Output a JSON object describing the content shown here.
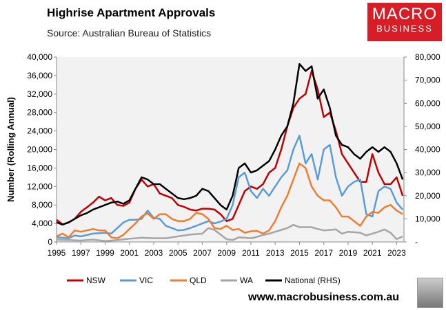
{
  "header": {
    "title": "Highrise Apartment Approvals",
    "source": "Source: Australian Bureau of Statistics"
  },
  "logo": {
    "line1": "MACRO",
    "line2": "BUSINESS",
    "color": "#d71e27"
  },
  "footer": {
    "url": "www.macrobusiness.com.au"
  },
  "chart_data": {
    "type": "line",
    "title": "Highrise Apartment Approvals",
    "ylabel": "Number (Rolling Annual)",
    "ylim": [
      0,
      40000
    ],
    "y2lim": [
      0,
      80000
    ],
    "yticks": [
      0,
      4000,
      8000,
      12000,
      16000,
      20000,
      24000,
      28000,
      32000,
      36000,
      40000
    ],
    "ytick_labels": [
      "0",
      "4,000",
      "8,000",
      "12,000",
      "16,000",
      "20,000",
      "24,000",
      "28,000",
      "32,000",
      "36,000",
      "40,000"
    ],
    "y2ticks": [
      0,
      10000,
      20000,
      30000,
      40000,
      50000,
      60000,
      70000,
      80000
    ],
    "y2tick_labels": [
      "-",
      "10,000",
      "20,000",
      "30,000",
      "40,000",
      "50,000",
      "60,000",
      "70,000",
      "80,000"
    ],
    "xlim": [
      1995,
      2023.6
    ],
    "xticks": [
      1995,
      1997,
      1999,
      2001,
      2003,
      2005,
      2007,
      2009,
      2011,
      2013,
      2015,
      2017,
      2019,
      2021,
      2023
    ],
    "xtick_labels": [
      "1995",
      "1997",
      "1999",
      "2001",
      "2003",
      "2005",
      "2007",
      "2009",
      "2011",
      "2013",
      "2015",
      "2017",
      "2019",
      "2021",
      "2023"
    ],
    "grid": false,
    "legend": "bottom",
    "x": [
      1995,
      1995.5,
      1996,
      1996.5,
      1997,
      1997.5,
      1998,
      1998.5,
      1999,
      1999.5,
      2000,
      2000.5,
      2001,
      2001.5,
      2002,
      2002.5,
      2003,
      2003.5,
      2004,
      2004.5,
      2005,
      2005.5,
      2006,
      2006.5,
      2007,
      2007.5,
      2008,
      2008.5,
      2009,
      2009.5,
      2010,
      2010.5,
      2011,
      2011.5,
      2012,
      2012.5,
      2013,
      2013.5,
      2014,
      2014.5,
      2015,
      2015.5,
      2016,
      2016.5,
      2017,
      2017.5,
      2018,
      2018.5,
      2019,
      2019.5,
      2020,
      2020.5,
      2021,
      2021.5,
      2022,
      2022.5,
      2023,
      2023.5
    ],
    "series": [
      {
        "name": "NSW",
        "color": "#c00000",
        "axis": "left",
        "values": [
          4800,
          3800,
          4200,
          5000,
          6500,
          7500,
          8500,
          9800,
          9000,
          9500,
          8000,
          7800,
          8500,
          11500,
          13500,
          12000,
          12500,
          10500,
          10000,
          9500,
          8000,
          7600,
          7000,
          6800,
          7200,
          7200,
          7000,
          6000,
          4500,
          5000,
          8000,
          11000,
          12000,
          11500,
          12500,
          15000,
          16000,
          20000,
          25000,
          29000,
          31000,
          32000,
          37000,
          33000,
          27000,
          28000,
          24000,
          19000,
          17000,
          15000,
          13000,
          13000,
          19000,
          15000,
          12500,
          12500,
          14000,
          10000
        ]
      },
      {
        "name": "VIC",
        "color": "#5b9bd5",
        "axis": "left",
        "values": [
          1000,
          900,
          800,
          1400,
          1200,
          1500,
          1800,
          1900,
          2000,
          1800,
          3000,
          4200,
          4800,
          4800,
          5000,
          6800,
          5200,
          5000,
          3500,
          3000,
          2500,
          2600,
          3000,
          3500,
          4000,
          4500,
          4000,
          4400,
          5000,
          8000,
          14000,
          15000,
          11000,
          9500,
          11500,
          10000,
          12000,
          14000,
          15500,
          20000,
          23000,
          17000,
          19000,
          13500,
          20000,
          21000,
          14000,
          10000,
          12000,
          13000,
          13500,
          6000,
          5500,
          11000,
          12000,
          11500,
          8500,
          7000
        ]
      },
      {
        "name": "QLD",
        "color": "#ed7d31",
        "axis": "left",
        "values": [
          1200,
          1800,
          1000,
          2500,
          2200,
          2500,
          2800,
          2500,
          2500,
          1000,
          800,
          1500,
          2800,
          4000,
          5500,
          6200,
          5000,
          6000,
          6000,
          5000,
          4500,
          4500,
          5000,
          6300,
          6000,
          5000,
          3000,
          2800,
          3500,
          2600,
          2800,
          2000,
          2300,
          2400,
          1800,
          2500,
          4500,
          7500,
          10000,
          13500,
          17000,
          16000,
          12000,
          10000,
          9000,
          9000,
          7500,
          5500,
          5500,
          4500,
          3500,
          5500,
          6500,
          6300,
          7500,
          8000,
          6800,
          6000
        ]
      },
      {
        "name": "WA",
        "color": "#a5a5a5",
        "axis": "left",
        "values": [
          500,
          450,
          400,
          350,
          300,
          400,
          500,
          350,
          200,
          300,
          400,
          550,
          700,
          800,
          900,
          850,
          800,
          800,
          800,
          1000,
          1200,
          1400,
          1600,
          1700,
          1800,
          3000,
          2600,
          1600,
          600,
          400,
          1000,
          900,
          800,
          1100,
          1500,
          1800,
          2200,
          2600,
          3000,
          3700,
          3200,
          3200,
          3200,
          2800,
          2500,
          2600,
          2700,
          1800,
          2200,
          2100,
          2000,
          1400,
          1800,
          2200,
          2700,
          2000,
          600,
          1200
        ]
      },
      {
        "name": "National (RHS)",
        "color": "#000000",
        "axis": "right",
        "values": [
          8500,
          7500,
          8500,
          10000,
          11500,
          12500,
          14000,
          15000,
          16000,
          17000,
          17500,
          16500,
          18000,
          23000,
          28000,
          27000,
          25000,
          25000,
          23000,
          21000,
          19000,
          18500,
          19000,
          20000,
          23000,
          22000,
          19000,
          16000,
          14000,
          20000,
          32000,
          34000,
          30000,
          31000,
          33000,
          35000,
          40000,
          46000,
          50000,
          60000,
          77000,
          74000,
          76000,
          62000,
          66000,
          58000,
          46000,
          42000,
          41000,
          38000,
          36000,
          39000,
          41000,
          39000,
          41000,
          39000,
          34000,
          27000
        ]
      }
    ]
  }
}
